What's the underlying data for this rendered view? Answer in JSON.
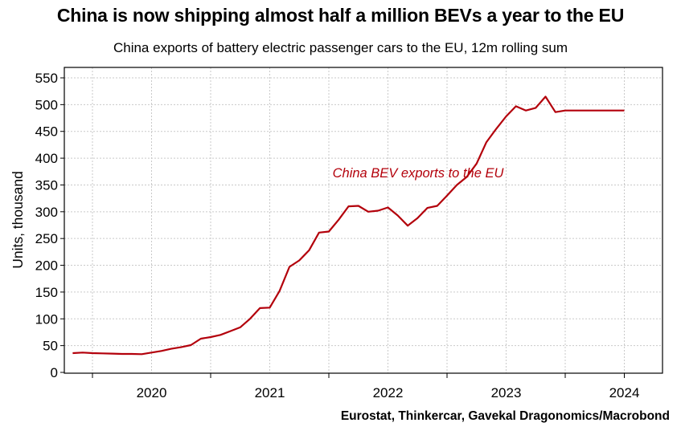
{
  "header": {
    "title": "China is now shipping almost half a million BEVs a year to the EU",
    "subtitle": "China exports of battery electric passenger cars to the EU, 12m rolling sum"
  },
  "footer": {
    "source": "Eurostat, Thinkercar, Gavekal Dragonomics/Macrobond"
  },
  "colors": {
    "series": "#b3000b",
    "grid": "#c9c9c9"
  },
  "chart_data": {
    "type": "line",
    "title": "China is now shipping almost half a million BEVs a year to the EU",
    "subtitle": "China exports of battery electric passenger cars to the EU, 12m rolling sum",
    "xlabel": "",
    "ylabel": "Units, thousand",
    "ylim": [
      0,
      560
    ],
    "xlim": [
      2019.33,
      2024.17
    ],
    "yticks": [
      0,
      50,
      100,
      150,
      200,
      250,
      300,
      350,
      400,
      450,
      500,
      550
    ],
    "xticks": [
      {
        "label": "2020",
        "pos": 2020.0
      },
      {
        "label": "2021",
        "pos": 2021.0
      },
      {
        "label": "2022",
        "pos": 2022.0
      },
      {
        "label": "2023",
        "pos": 2023.0
      },
      {
        "label": "2024",
        "pos": 2024.0
      }
    ],
    "xgrid": [
      2019.0,
      2019.5,
      2020.0,
      2020.5,
      2021.0,
      2021.5,
      2022.0,
      2022.5,
      2023.0,
      2023.5,
      2024.0
    ],
    "grid": true,
    "annotation": "China BEV exports to the EU",
    "series": [
      {
        "name": "China BEV exports to the EU",
        "x": [
          2019.333,
          2019.417,
          2019.5,
          2019.583,
          2019.667,
          2019.75,
          2019.833,
          2019.917,
          2020.0,
          2020.083,
          2020.167,
          2020.25,
          2020.333,
          2020.417,
          2020.5,
          2020.583,
          2020.667,
          2020.75,
          2020.833,
          2020.917,
          2021.0,
          2021.083,
          2021.167,
          2021.25,
          2021.333,
          2021.417,
          2021.5,
          2021.583,
          2021.667,
          2021.75,
          2021.833,
          2021.917,
          2022.0,
          2022.083,
          2022.167,
          2022.25,
          2022.333,
          2022.417,
          2022.5,
          2022.583,
          2022.667,
          2022.75,
          2022.833,
          2022.917,
          2023.0,
          2023.083,
          2023.167,
          2023.25,
          2023.333,
          2023.417,
          2023.5,
          2023.583,
          2023.667,
          2023.75,
          2023.833,
          2023.917,
          2024.0
        ],
        "values": [
          36,
          37,
          36,
          35.5,
          35,
          34.5,
          34.5,
          34,
          37,
          40,
          44,
          47,
          51,
          63,
          66,
          70,
          77,
          84,
          100,
          120,
          121,
          152,
          197,
          209,
          228,
          261,
          263,
          285,
          310,
          311,
          300,
          302,
          308,
          293,
          274,
          288,
          307,
          311,
          330,
          350,
          365,
          390,
          430,
          455,
          478,
          497,
          489,
          494,
          515,
          486,
          489,
          489,
          489,
          489,
          489,
          489,
          489
        ]
      }
    ]
  }
}
